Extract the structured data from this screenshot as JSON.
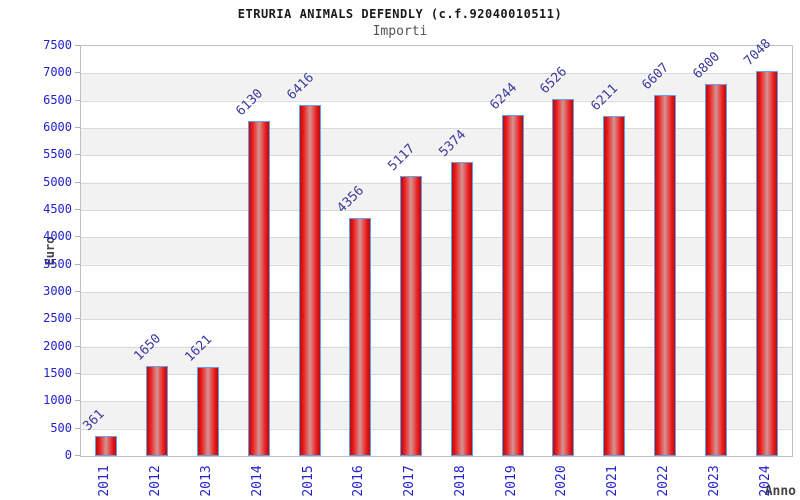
{
  "chart_data": {
    "type": "bar",
    "title": "ETRURIA ANIMALS DEFENDLY (c.f.92040010511)",
    "subtitle": "Importi",
    "xlabel": "Anno",
    "ylabel": "Euro",
    "categories": [
      "2011",
      "2012",
      "2013",
      "2014",
      "2015",
      "2016",
      "2017",
      "2018",
      "2019",
      "2020",
      "2021",
      "2022",
      "2023",
      "2024"
    ],
    "values": [
      361,
      1650,
      1621,
      6130,
      6416,
      4356,
      5117,
      5374,
      6244,
      6526,
      6211,
      6607,
      6800,
      7048
    ],
    "ylim": [
      0,
      7500
    ],
    "ytick_step": 500,
    "grid": "horizontal",
    "legend_position": "none",
    "colors": {
      "bar_edge_red": "#b01010",
      "bar_bright_red": "#ee1c1c",
      "bar_center_highlight": "#d49494",
      "bar_border": "#66a0e8",
      "axis_tick_label": "#2222cc",
      "value_label": "#3a3a9c",
      "axis_title": "#444444",
      "band_stripe": "#f2f2f2",
      "gridline": "#d9d9d9",
      "plot_border": "#c0c0c0",
      "title_color": "#1a1a1a",
      "subtitle_color": "#555555"
    }
  }
}
